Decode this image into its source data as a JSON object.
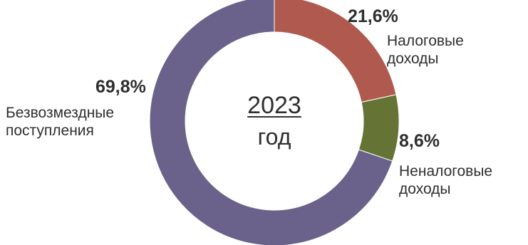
{
  "chart_data": {
    "type": "pie",
    "variant": "donut",
    "center_label": {
      "year": "2023",
      "unit": "год"
    },
    "slices": [
      {
        "label_lines": [
          "Налоговые",
          "доходы"
        ],
        "value": 21.6,
        "value_label": "21,6%",
        "color": "#b05a4f"
      },
      {
        "label_lines": [
          "Неналоговые",
          "доходы"
        ],
        "value": 8.6,
        "value_label": "8,6%",
        "color": "#657334"
      },
      {
        "label_lines": [
          "Безвозмездные",
          "поступления"
        ],
        "value": 69.8,
        "value_label": "69,8%",
        "color": "#6a628a"
      }
    ],
    "start_angle": "12 o'clock",
    "direction": "clockwise",
    "legend": "none"
  }
}
